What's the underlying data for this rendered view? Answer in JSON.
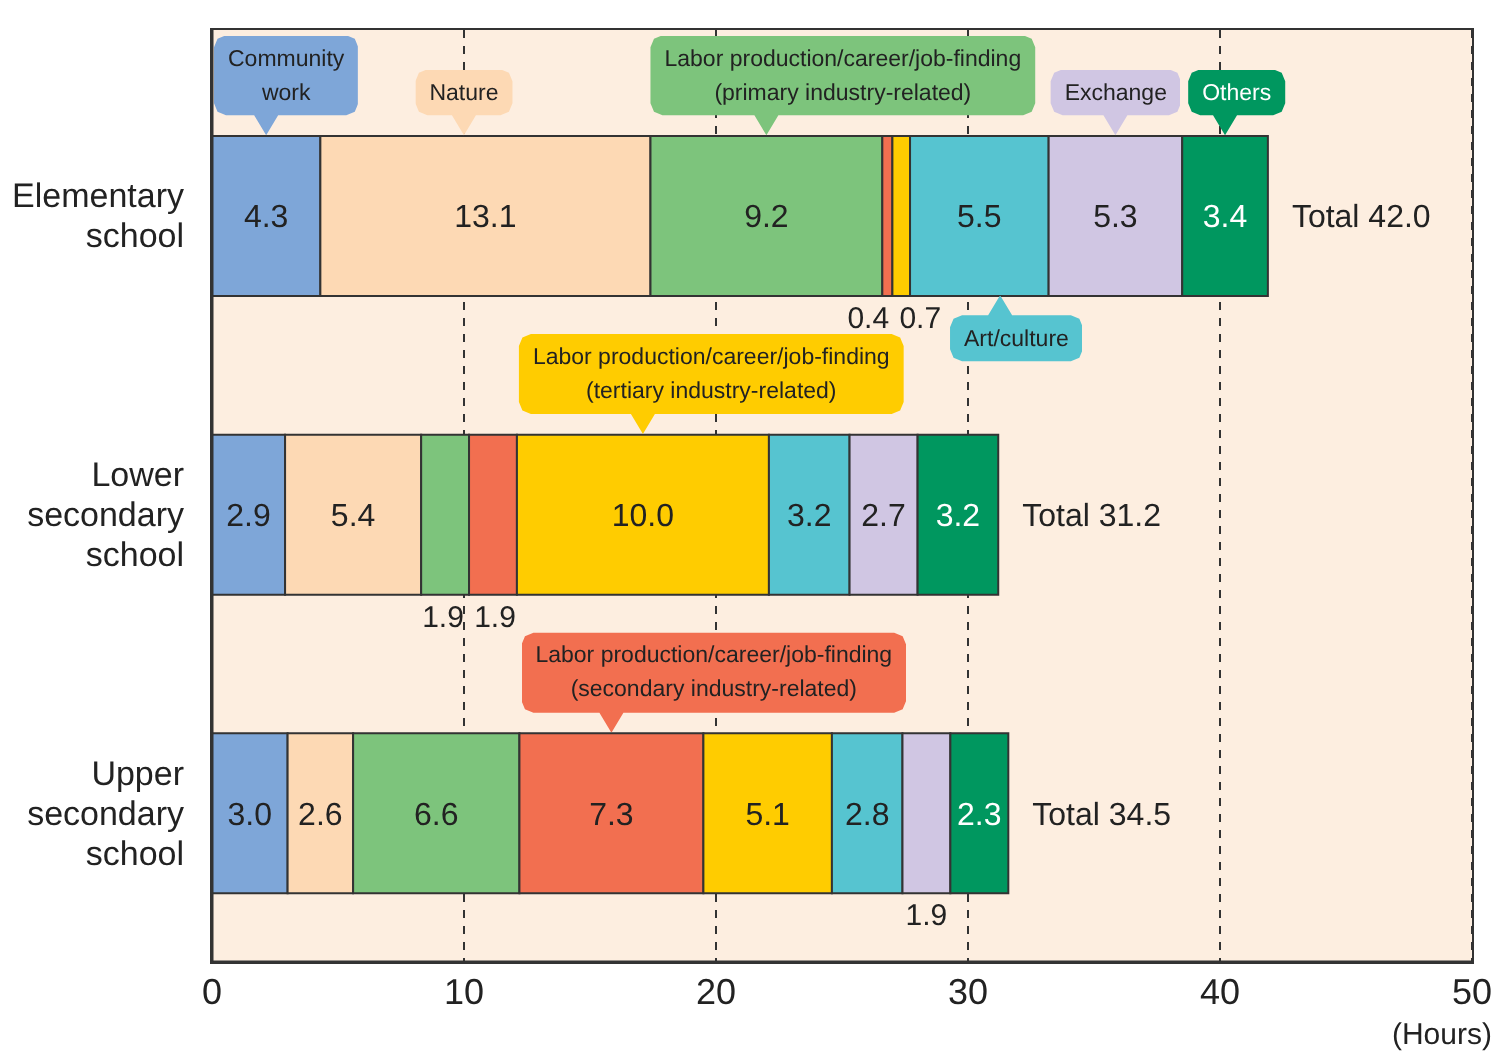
{
  "chart_data": {
    "type": "bar",
    "orientation": "horizontal",
    "stacked": true,
    "categories": [
      "Elementary school",
      "Lower secondary school",
      "Upper secondary school"
    ],
    "series": [
      {
        "name": "Community work",
        "color": "#7ea6d8",
        "values": [
          4.3,
          2.9,
          3.0
        ],
        "value_labels": [
          "4.3",
          "2.9",
          "3.0"
        ]
      },
      {
        "name": "Nature",
        "color": "#fdd9b4",
        "values": [
          13.1,
          5.4,
          2.6
        ],
        "value_labels": [
          "13.1",
          "5.4",
          "2.6"
        ]
      },
      {
        "name": "Labor production/career/job-finding (primary industry-related)",
        "color": "#7dc47c",
        "values": [
          9.2,
          1.9,
          6.6
        ],
        "value_labels": [
          "9.2",
          "1.9",
          "6.6"
        ]
      },
      {
        "name": "Labor production/career/job-finding (secondary industry-related)",
        "color": "#f26f50",
        "values": [
          0.4,
          1.9,
          7.3
        ],
        "value_labels": [
          "0.4",
          "1.9",
          "7.3"
        ]
      },
      {
        "name": "Labor production/career/job-finding (tertiary industry-related)",
        "color": "#ffcc00",
        "values": [
          0.7,
          10.0,
          5.1
        ],
        "value_labels": [
          "0.7",
          "10.0",
          "5.1"
        ]
      },
      {
        "name": "Art/culture",
        "color": "#56c4d0",
        "values": [
          5.5,
          3.2,
          2.8
        ],
        "value_labels": [
          "5.5",
          "3.2",
          "2.8"
        ]
      },
      {
        "name": "Exchange",
        "color": "#d0c6e3",
        "values": [
          5.3,
          2.7,
          1.9
        ],
        "value_labels": [
          "5.3",
          "2.7",
          "1.9"
        ]
      },
      {
        "name": "Others",
        "color": "#00975f",
        "values": [
          3.4,
          3.2,
          2.3
        ],
        "value_labels": [
          "3.4",
          "3.2",
          "2.3"
        ]
      }
    ],
    "xlim": [
      0,
      50
    ],
    "xticks": [
      0,
      10,
      20,
      30,
      40,
      50
    ],
    "xlabel": "(Hours)",
    "grid": "x",
    "totals": [
      "Total 42.0",
      "Total 31.2",
      "Total 34.5"
    ]
  }
}
